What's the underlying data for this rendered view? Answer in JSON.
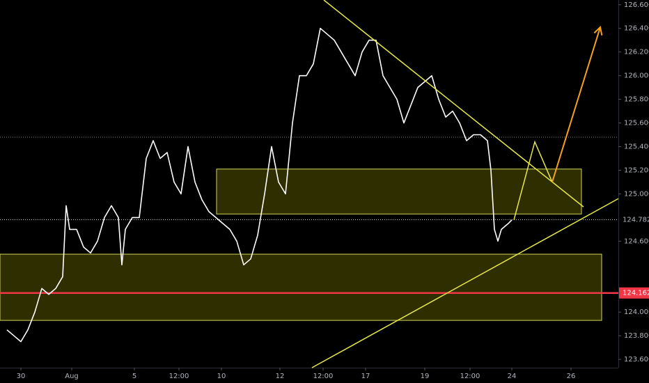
{
  "chart_data": {
    "type": "line",
    "color": "#ffffff",
    "x": [
      1,
      2,
      3,
      4,
      5,
      6,
      7,
      8,
      9,
      9.5,
      10,
      11,
      12,
      13,
      14,
      15,
      16,
      17,
      17.5,
      18,
      19,
      20,
      21,
      22,
      23,
      24,
      25,
      26,
      27,
      28,
      29,
      30,
      31,
      32,
      33,
      34,
      35,
      36,
      37,
      38,
      39,
      40,
      41,
      42,
      43,
      44,
      45,
      46,
      47,
      48,
      49,
      50,
      51,
      52,
      53,
      54,
      55,
      56,
      57,
      58,
      59,
      60,
      61,
      62,
      63,
      64,
      65,
      66,
      67,
      68,
      69,
      70,
      70.5,
      71,
      71.5,
      72,
      73,
      73.5
    ],
    "values": [
      123.85,
      123.8,
      123.75,
      123.85,
      124.0,
      124.2,
      124.15,
      124.2,
      124.3,
      124.9,
      124.7,
      124.7,
      124.55,
      124.5,
      124.6,
      124.8,
      124.9,
      124.8,
      124.4,
      124.7,
      124.8,
      124.8,
      125.3,
      125.45,
      125.3,
      125.35,
      125.1,
      125.0,
      125.4,
      125.1,
      124.95,
      124.85,
      124.8,
      124.75,
      124.7,
      124.6,
      124.4,
      124.45,
      124.65,
      125.0,
      125.4,
      125.1,
      125.0,
      125.6,
      126.0,
      126.0,
      126.1,
      126.4,
      126.35,
      126.3,
      126.2,
      126.1,
      126.0,
      126.2,
      126.3,
      126.3,
      126.0,
      125.9,
      125.8,
      125.6,
      125.75,
      125.9,
      125.95,
      126.0,
      125.8,
      125.65,
      125.7,
      125.6,
      125.45,
      125.5,
      125.5,
      125.45,
      125.2,
      124.7,
      124.6,
      124.7,
      124.75,
      124.78
    ],
    "xlim": [
      0,
      88.8
    ],
    "xticks": [
      {
        "value": 3,
        "label": "30"
      },
      {
        "value": 10.3,
        "label": "Aug"
      },
      {
        "value": 19.3,
        "label": "5"
      },
      {
        "value": 25.7,
        "label": "12:00"
      },
      {
        "value": 31.8,
        "label": "10"
      },
      {
        "value": 40.2,
        "label": "12"
      },
      {
        "value": 46.4,
        "label": "12:00"
      },
      {
        "value": 52.5,
        "label": "17"
      },
      {
        "value": 61,
        "label": "19"
      },
      {
        "value": 67.5,
        "label": "12:00"
      },
      {
        "value": 73.5,
        "label": "24"
      },
      {
        "value": 82,
        "label": "26"
      }
    ],
    "ylim": [
      123.53,
      126.64
    ],
    "yticks": [
      {
        "value": 123.6,
        "label": "123.600"
      },
      {
        "value": 123.8,
        "label": "123.800"
      },
      {
        "value": 124.0,
        "label": "124.000"
      },
      {
        "value": 124.6,
        "label": "124.600"
      },
      {
        "value": 125.0,
        "label": "125.000"
      },
      {
        "value": 125.2,
        "label": "125.200"
      },
      {
        "value": 125.4,
        "label": "125.400"
      },
      {
        "value": 125.6,
        "label": "125.600"
      },
      {
        "value": 125.8,
        "label": "125.800"
      },
      {
        "value": 126.0,
        "label": "126.000"
      },
      {
        "value": 126.2,
        "label": "126.200"
      },
      {
        "value": 126.4,
        "label": "126.400"
      },
      {
        "value": 126.6,
        "label": "126.600"
      }
    ],
    "current_price": 124.782,
    "support_level": 124.162,
    "support_color": "#f23645",
    "reference_level": 125.48,
    "zones": [
      {
        "x": [
          31.1,
          83.5
        ],
        "y": [
          124.83,
          125.21
        ]
      },
      {
        "x": [
          0,
          86.4
        ],
        "y": [
          123.93,
          124.49
        ]
      }
    ],
    "trendlines": [
      {
        "x": [
          46.5,
          83.8
        ],
        "y": [
          126.64,
          124.89
        ]
      },
      {
        "x": [
          44.8,
          88.8
        ],
        "y": [
          123.53,
          124.96
        ]
      }
    ],
    "projection": {
      "x": [
        73.8,
        76.8,
        79.3
      ],
      "y": [
        124.78,
        125.44,
        125.1
      ]
    },
    "target_arrow": {
      "x": [
        79.3,
        86.2
      ],
      "y": [
        125.1,
        126.41
      ],
      "color": "#f7a21b"
    }
  }
}
